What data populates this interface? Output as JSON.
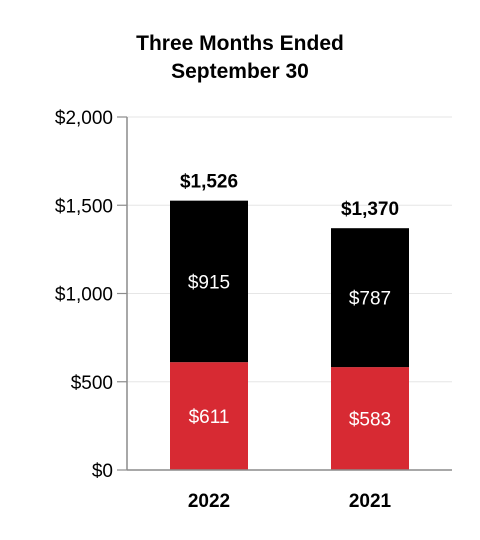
{
  "chart_data": {
    "type": "bar",
    "stacked": true,
    "title_lines": [
      "Three Months Ended",
      "September 30"
    ],
    "categories": [
      "2022",
      "2021"
    ],
    "series": [
      {
        "values": [
          611,
          583
        ],
        "labels": [
          "$611",
          "$583"
        ],
        "color": "#d72a33"
      },
      {
        "values": [
          915,
          787
        ],
        "labels": [
          "$915",
          "$787"
        ],
        "color": "#000000"
      }
    ],
    "totals": [
      1526,
      1370
    ],
    "total_labels": [
      "$1,526",
      "$1,370"
    ],
    "ylim": [
      0,
      2000
    ],
    "yticks": [
      0,
      500,
      1000,
      1500,
      2000
    ],
    "ytick_labels": [
      "$0",
      "$500",
      "$1,000",
      "$1,500",
      "$2,000"
    ],
    "grid": true,
    "grid_color": "#e6e6e6",
    "axis_color": "#8c8c8c"
  }
}
